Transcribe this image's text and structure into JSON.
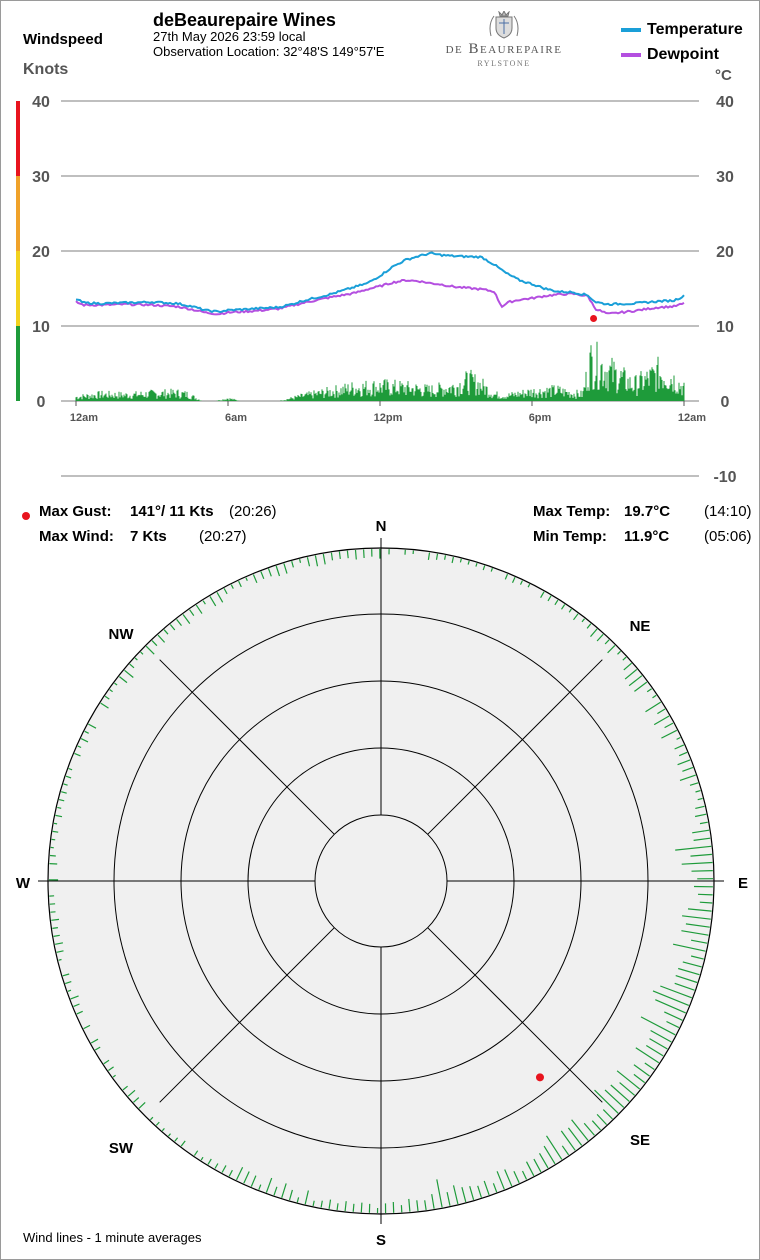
{
  "header": {
    "left_title": "Windspeed",
    "left_unit": "Knots",
    "title": "deBeaurepaire Wines",
    "date_line": "27th May 2026  23:59 local",
    "location_line": "Observation Location: 32°48'S 149°57'E",
    "logo_text": "de Beaurepaire",
    "logo_subtext": "RYLSTONE",
    "right_unit": "°C"
  },
  "legend": {
    "temperature": {
      "label": "Temperature",
      "color": "#1a9fd8"
    },
    "dewpoint": {
      "label": "Dewpoint",
      "color": "#b44fe0"
    }
  },
  "chart_data": {
    "type": "line",
    "left_axis": {
      "label": "Knots",
      "ticks": [
        "40",
        "30",
        "20",
        "10",
        "0"
      ],
      "range": [
        0,
        40
      ]
    },
    "right_axis": {
      "label": "°C",
      "ticks": [
        "40",
        "30",
        "20",
        "10",
        "0",
        "-10"
      ],
      "range": [
        -10,
        40
      ]
    },
    "x_ticks": [
      "12am",
      "6am",
      "12pm",
      "6pm",
      "12am"
    ],
    "series": [
      {
        "name": "Temperature",
        "color": "#1a9fd8",
        "x_hours": [
          0,
          0.3,
          1,
          2,
          3,
          4,
          4.6,
          5.1,
          5.6,
          6,
          7,
          8,
          8.5,
          9,
          10,
          11,
          11.5,
          12,
          12.5,
          13,
          13.5,
          14,
          14.3,
          15,
          16,
          16.5,
          17,
          17.5,
          18,
          18.5,
          19,
          19.6,
          20.2,
          20.5,
          21,
          22,
          23,
          23.6,
          24
        ],
        "values": [
          13.6,
          13.1,
          13.0,
          13.1,
          13.2,
          13.0,
          12.6,
          12.1,
          11.9,
          12.1,
          12.3,
          12.5,
          12.9,
          13.4,
          14.2,
          15.2,
          15.7,
          16.7,
          17.9,
          18.8,
          19.3,
          19.7,
          19.5,
          19.3,
          19.2,
          18.2,
          17.0,
          16.1,
          15.6,
          15.0,
          14.6,
          14.5,
          14.1,
          13.2,
          12.9,
          13.0,
          13.3,
          13.4,
          14.0
        ]
      },
      {
        "name": "Dewpoint",
        "color": "#b44fe0",
        "x_hours": [
          0,
          0.3,
          1,
          2,
          3,
          4,
          4.6,
          5.1,
          5.6,
          6,
          7,
          8,
          8.5,
          9,
          10,
          11,
          11.5,
          12,
          12.5,
          13,
          13.5,
          14,
          14.3,
          15,
          16,
          16.5,
          16.8,
          17.1,
          17.5,
          18,
          18.5,
          19,
          19.6,
          20.2,
          20.5,
          21,
          22,
          23,
          23.6,
          24
        ],
        "values": [
          13.2,
          12.8,
          12.8,
          12.9,
          12.8,
          12.6,
          12.2,
          11.8,
          11.6,
          11.8,
          12.0,
          12.3,
          12.7,
          13.1,
          13.8,
          14.4,
          14.9,
          15.3,
          15.8,
          16.1,
          16.0,
          15.7,
          15.6,
          15.2,
          14.9,
          14.6,
          12.6,
          13.2,
          13.5,
          13.7,
          14.0,
          14.2,
          14.3,
          14.0,
          12.3,
          11.6,
          12.0,
          12.5,
          12.6,
          13.0
        ]
      },
      {
        "name": "Windspeed (1 min avg)",
        "color": "#1e9b3a",
        "x_hours": [
          0,
          1,
          2,
          3,
          4,
          4.4,
          5,
          5.5,
          6,
          6.5,
          7,
          8,
          8.6,
          9,
          10,
          11,
          12,
          13,
          14,
          15,
          15.5,
          16,
          16.5,
          17,
          18,
          19,
          19.5,
          20,
          20.3,
          20.6,
          21,
          21.5,
          22,
          22.5,
          23,
          23.5,
          24
        ],
        "values": [
          0.6,
          1.0,
          0.9,
          1.1,
          1.2,
          1.0,
          0,
          0,
          0.4,
          0,
          0,
          0,
          0.5,
          0.8,
          1.4,
          2.0,
          2.2,
          2.0,
          1.6,
          2.2,
          3.1,
          2.4,
          1.0,
          0.8,
          1.4,
          1.6,
          1.2,
          1.0,
          6.0,
          5.6,
          4.6,
          3.6,
          2.4,
          3.2,
          4.3,
          3.6,
          2.0
        ]
      }
    ],
    "gust_marker": {
      "x_hours": 20.43,
      "value": 11
    }
  },
  "stats": {
    "max_gust_label": "Max Gust:",
    "max_gust_value": "141°/ 11 Kts",
    "max_gust_time": "(20:26)",
    "max_wind_label": "Max Wind:",
    "max_wind_value": "7 Kts",
    "max_wind_time": "(20:27)",
    "max_temp_label": "Max Temp:",
    "max_temp_value": "19.7°C",
    "max_temp_time": "(14:10)",
    "min_temp_label": "Min Temp:",
    "min_temp_value": "11.9°C",
    "min_temp_time": "(05:06)"
  },
  "compass": {
    "N": "N",
    "NE": "NE",
    "E": "E",
    "SE": "SE",
    "S": "S",
    "SW": "SW",
    "W": "W",
    "NW": "NW",
    "gust_direction_deg": 141,
    "wind_line_color": "#1e9b3a",
    "gust_color": "#e8141e"
  },
  "footer": {
    "note": "Wind lines - 1 minute averages"
  },
  "colors": {
    "scale_red": "#e8141e",
    "scale_orange": "#f0a22a",
    "scale_yellow": "#f2d21e",
    "scale_green": "#1e9b3a",
    "gust": "#e8141e"
  }
}
